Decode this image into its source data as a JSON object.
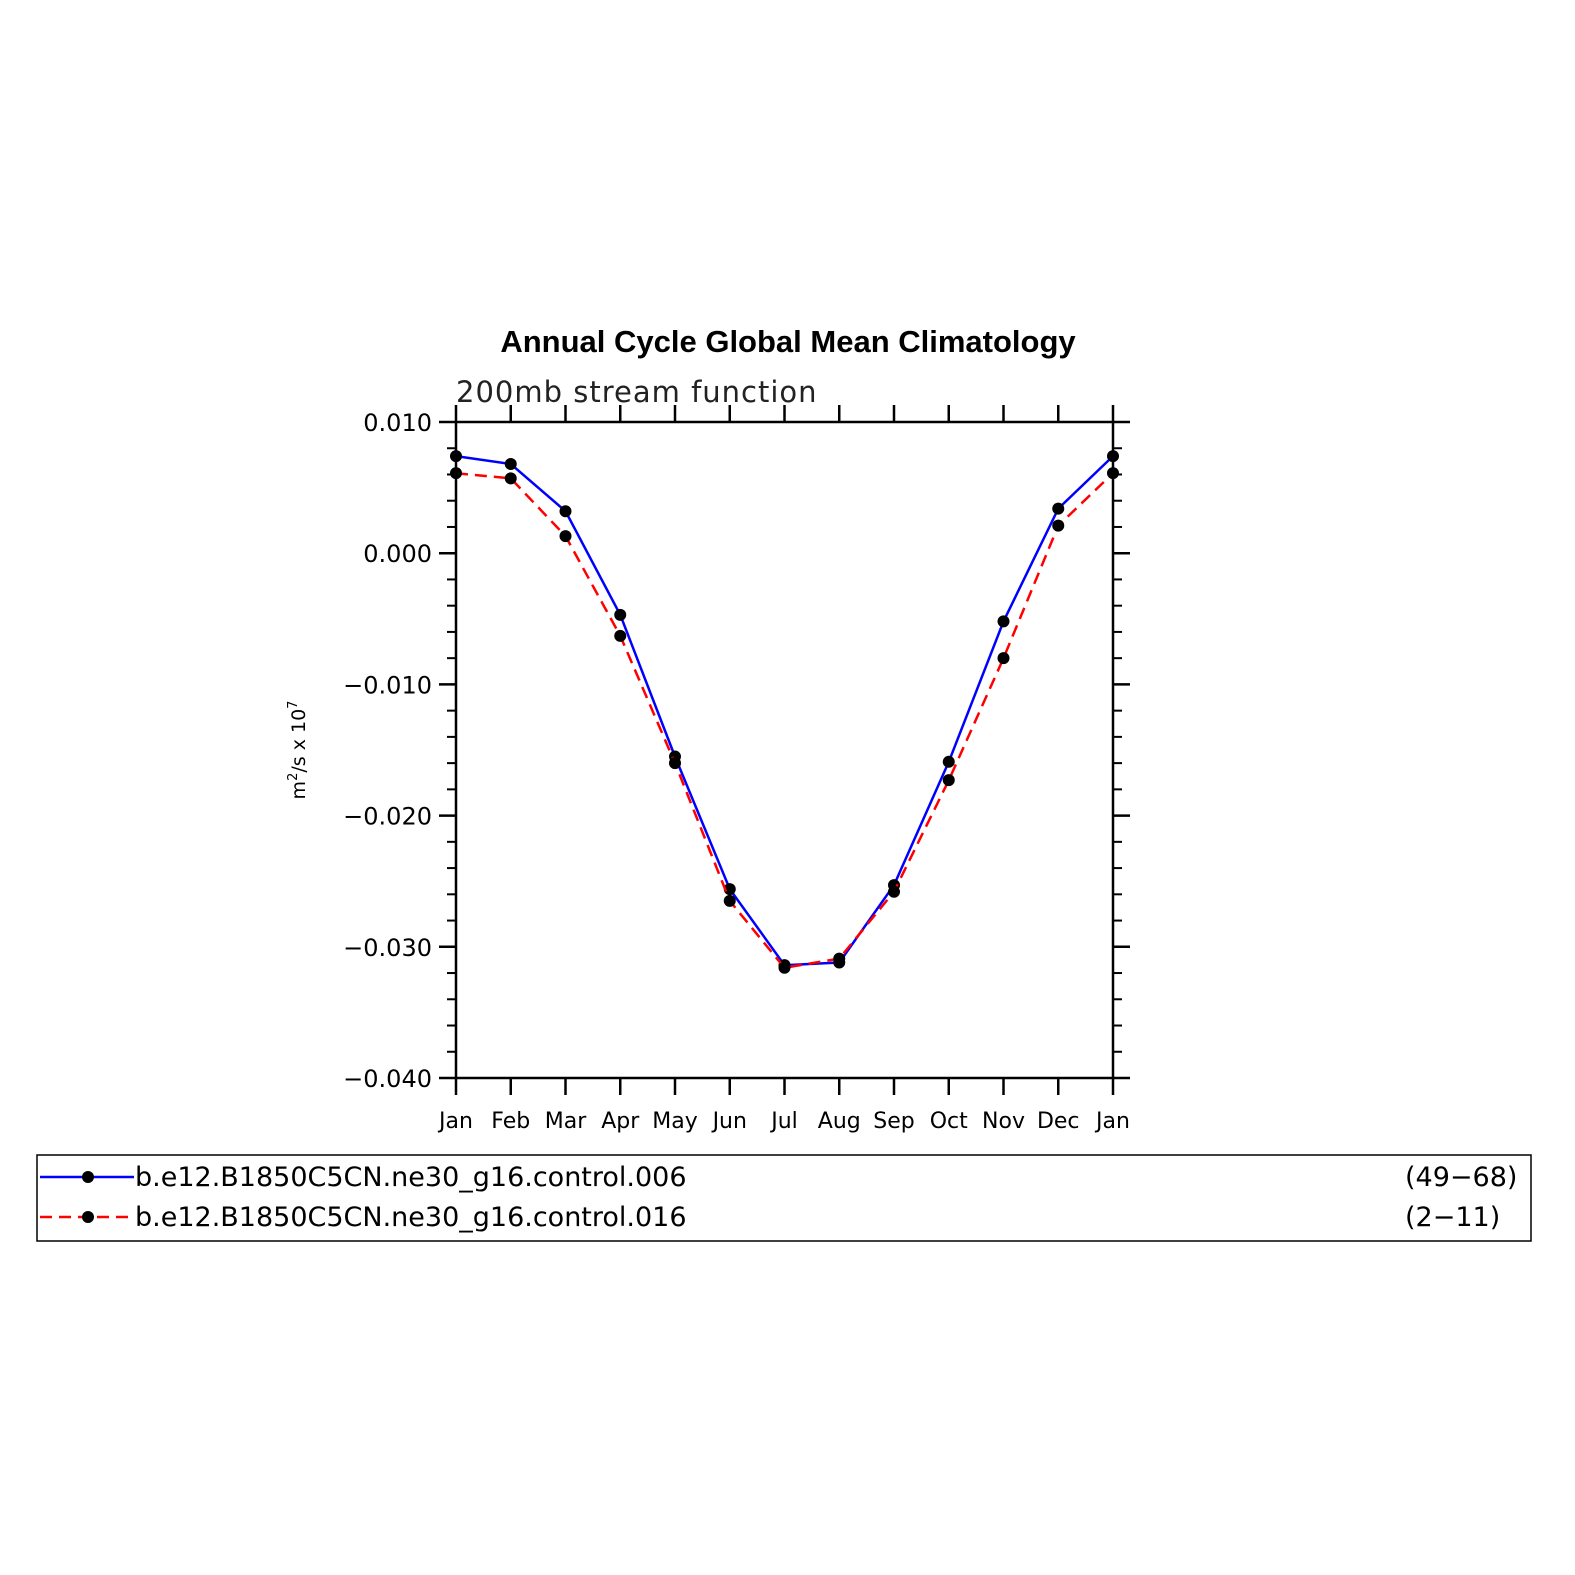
{
  "chart_data": {
    "type": "line",
    "title": "Annual Cycle Global Mean Climatology",
    "subtitle": "200mb stream function",
    "ylabel": {
      "base": "m",
      "sup1": "2",
      "mid": "/s x 10",
      "sup2": "7"
    },
    "xlabel": "",
    "categories": [
      "Jan",
      "Feb",
      "Mar",
      "Apr",
      "May",
      "Jun",
      "Jul",
      "Aug",
      "Sep",
      "Oct",
      "Nov",
      "Dec",
      "Jan"
    ],
    "ylim": [
      -0.04,
      0.01
    ],
    "yticks": [
      {
        "value": 0.01,
        "label": "0.010"
      },
      {
        "value": 0.0,
        "label": "0.000"
      },
      {
        "value": -0.01,
        "label": "−0.010"
      },
      {
        "value": -0.02,
        "label": "−0.020"
      },
      {
        "value": -0.03,
        "label": "−0.030"
      },
      {
        "value": -0.04,
        "label": "−0.040"
      }
    ],
    "series": [
      {
        "name": "b.e12.B1850C5CN.ne30_g16.control.006",
        "years": "(49−68)",
        "color": "#0000ff",
        "dash": "solid",
        "values": [
          0.0074,
          0.0068,
          0.0032,
          -0.0047,
          -0.0155,
          -0.0256,
          -0.0314,
          -0.0312,
          -0.0253,
          -0.0159,
          -0.0052,
          0.0034,
          0.0074
        ]
      },
      {
        "name": "b.e12.B1850C5CN.ne30_g16.control.016",
        "years": "(2−11)",
        "color": "#ff0000",
        "dash": "dashed",
        "values": [
          0.0061,
          0.0057,
          0.0013,
          -0.0063,
          -0.016,
          -0.0265,
          -0.0316,
          -0.0309,
          -0.0258,
          -0.0173,
          -0.008,
          0.0021,
          0.0061
        ]
      }
    ],
    "marker_color": "#000000",
    "grid": false,
    "legend_position": "bottom"
  }
}
